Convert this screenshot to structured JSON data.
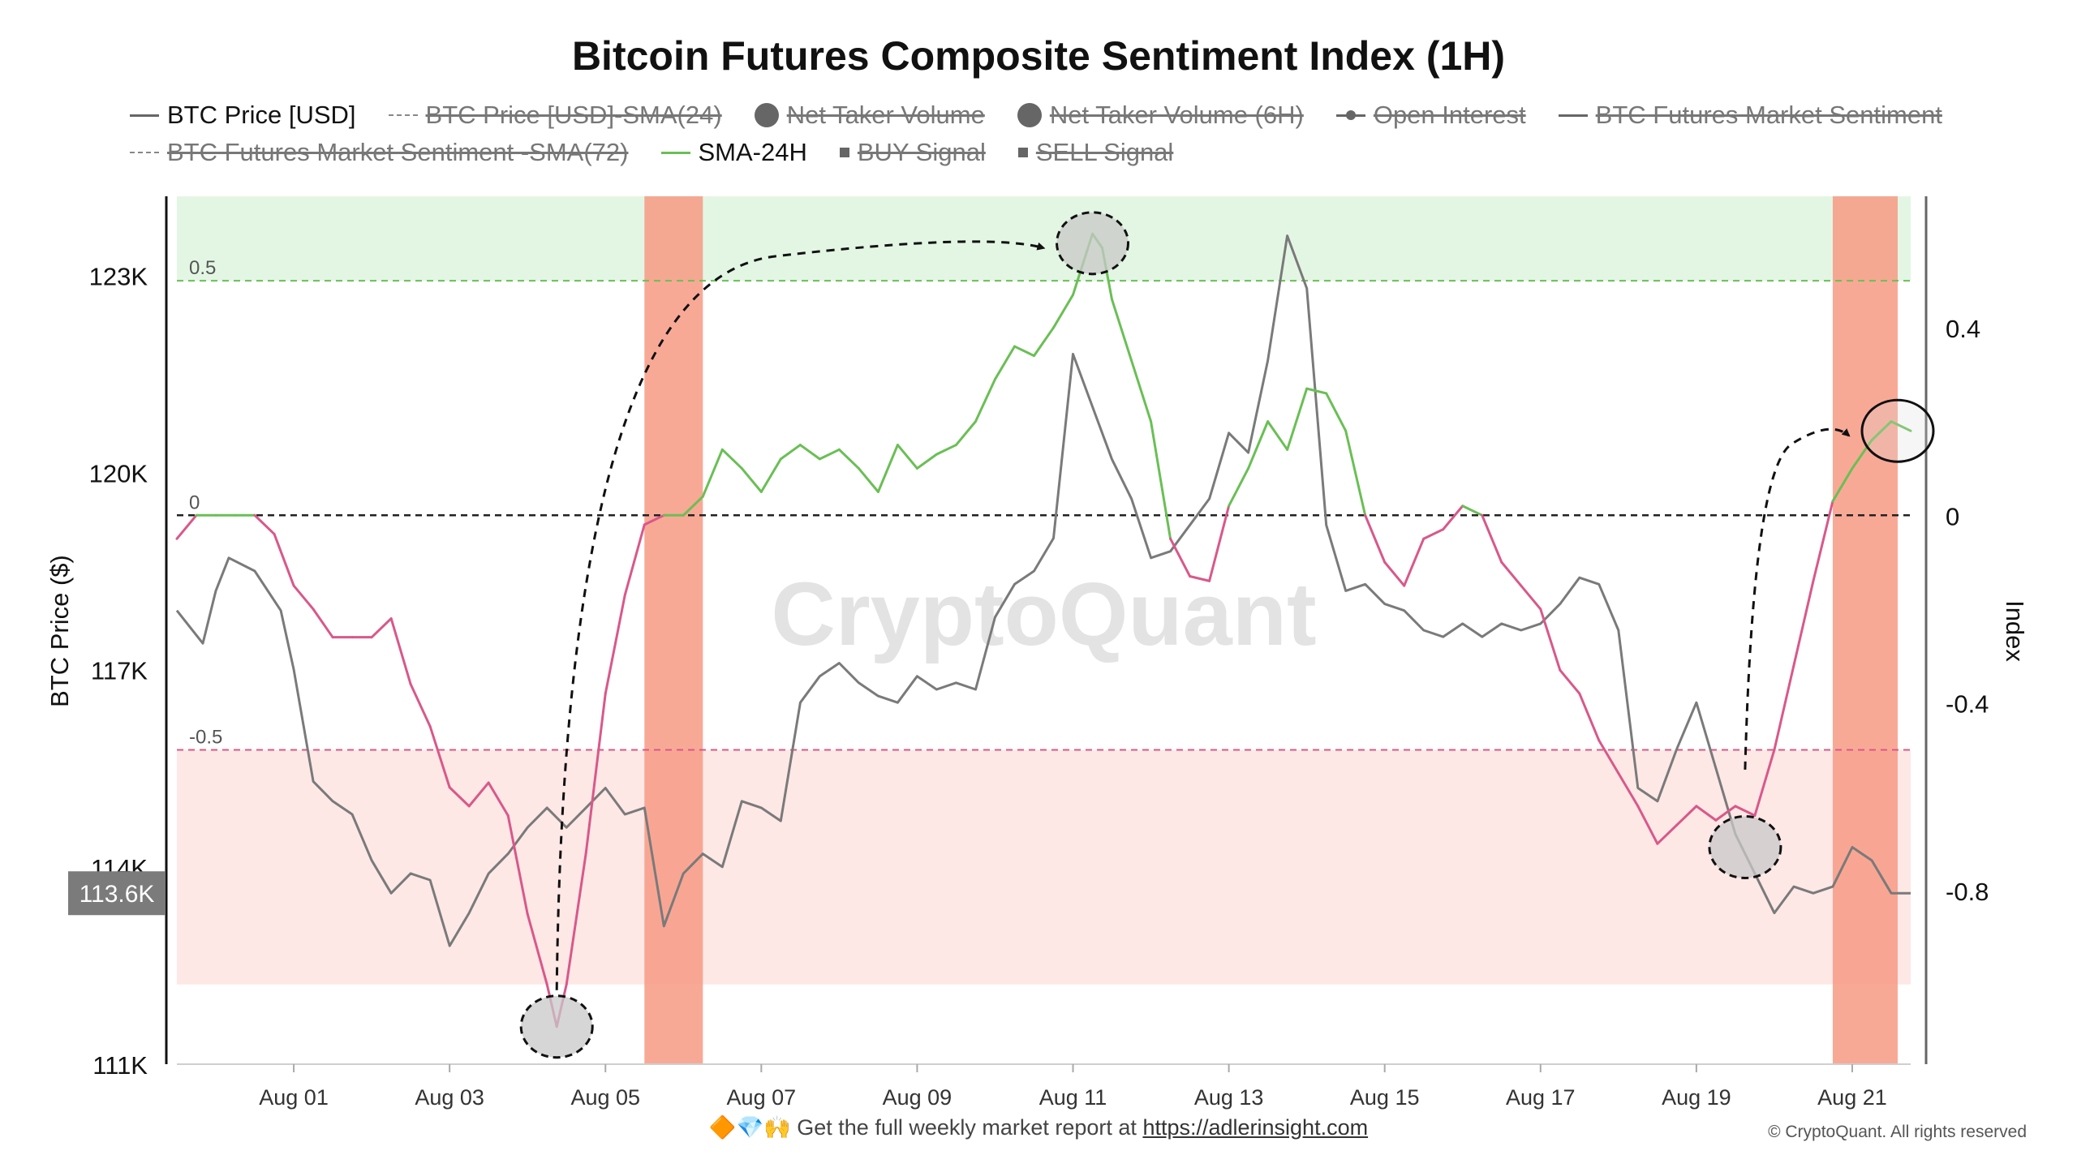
{
  "title": "Bitcoin Futures Composite Sentiment Index (1H)",
  "legend": [
    {
      "label": "BTC Price [USD]",
      "swatch": "line",
      "enabled": true
    },
    {
      "label": "BTC Price [USD]-SMA(24)",
      "swatch": "dash",
      "enabled": false
    },
    {
      "label": "Net Taker Volume",
      "swatch": "dot",
      "enabled": false
    },
    {
      "label": "Net Taker Volume (6H)",
      "swatch": "dot",
      "enabled": false
    },
    {
      "label": "Open Interest",
      "swatch": "linedot",
      "enabled": false
    },
    {
      "label": "BTC Futures Market Sentiment",
      "swatch": "line",
      "enabled": false
    },
    {
      "label": "BTC Futures Market Sentiment -SMA(72)",
      "swatch": "dash",
      "enabled": false
    },
    {
      "label": "SMA-24H",
      "swatch": "green",
      "enabled": true
    },
    {
      "label": "BUY Signal",
      "swatch": "square",
      "enabled": false
    },
    {
      "label": "SELL Signal",
      "swatch": "square",
      "enabled": false
    }
  ],
  "watermark": "CryptoQuant",
  "footer": {
    "emoji": "🔶💎🙌",
    "text": "Get the full weekly market report at ",
    "link": "https://adlerinsight.com"
  },
  "copyright": "© CryptoQuant. All rights reserved",
  "colors": {
    "price": "#7a7a7a",
    "sma_high": "#6abf55",
    "sma_low": "#d9588a",
    "bull_zone": "#e3f6e4",
    "bear_zone": "#fde8e6",
    "signal_band": "#f79a84"
  },
  "chart_data": {
    "type": "line",
    "x_ticks": [
      "Aug 01",
      "Aug 03",
      "Aug 05",
      "Aug 07",
      "Aug 09",
      "Aug 11",
      "Aug 13",
      "Aug 15",
      "Aug 17",
      "Aug 19",
      "Aug 21"
    ],
    "x_range": [
      "2025-07-30 12:00",
      "2025-08-21 18:00"
    ],
    "left_axis": {
      "label": "BTC Price ($)",
      "ticks": [
        "111K",
        "114K",
        "117K",
        "120K",
        "123K"
      ],
      "ylim": [
        111000,
        124200
      ],
      "current_value_label": "113.6K"
    },
    "right_axis": {
      "label": "Index",
      "ticks": [
        "0.4",
        "0",
        "-0.4",
        "-0.8"
      ],
      "ylim": [
        -1.17,
        0.68
      ]
    },
    "thresholds": [
      {
        "value": 0.5,
        "label": "0.5"
      },
      {
        "value": 0,
        "label": "0"
      },
      {
        "value": -0.5,
        "label": "-0.5"
      }
    ],
    "zones": [
      {
        "from": 0.5,
        "to": 0.68,
        "kind": "bullish"
      },
      {
        "from": -1.0,
        "to": -0.5,
        "kind": "bearish"
      }
    ],
    "signal_bands": [
      {
        "start": "2025-08-05 12:00",
        "end": "2025-08-06 06:00"
      },
      {
        "start": "2025-08-20 18:00",
        "end": "2025-08-21 14:00"
      }
    ],
    "series": [
      {
        "name": "BTC Price [USD]",
        "axis": "left",
        "points": [
          [
            "2025-07-30 12:00",
            117900
          ],
          [
            "2025-07-30 20:00",
            117400
          ],
          [
            "2025-07-31 00:00",
            118200
          ],
          [
            "2025-07-31 04:00",
            118700
          ],
          [
            "2025-07-31 12:00",
            118500
          ],
          [
            "2025-07-31 20:00",
            117900
          ],
          [
            "2025-08-01 00:00",
            117000
          ],
          [
            "2025-08-01 06:00",
            115300
          ],
          [
            "2025-08-01 12:00",
            115000
          ],
          [
            "2025-08-01 18:00",
            114800
          ],
          [
            "2025-08-02 00:00",
            114100
          ],
          [
            "2025-08-02 06:00",
            113600
          ],
          [
            "2025-08-02 12:00",
            113900
          ],
          [
            "2025-08-02 18:00",
            113800
          ],
          [
            "2025-08-03 00:00",
            112800
          ],
          [
            "2025-08-03 06:00",
            113300
          ],
          [
            "2025-08-03 12:00",
            113900
          ],
          [
            "2025-08-03 18:00",
            114200
          ],
          [
            "2025-08-04 00:00",
            114600
          ],
          [
            "2025-08-04 06:00",
            114900
          ],
          [
            "2025-08-04 12:00",
            114600
          ],
          [
            "2025-08-04 18:00",
            114900
          ],
          [
            "2025-08-05 00:00",
            115200
          ],
          [
            "2025-08-05 06:00",
            114800
          ],
          [
            "2025-08-05 12:00",
            114900
          ],
          [
            "2025-08-05 18:00",
            113100
          ],
          [
            "2025-08-06 00:00",
            113900
          ],
          [
            "2025-08-06 06:00",
            114200
          ],
          [
            "2025-08-06 12:00",
            114000
          ],
          [
            "2025-08-06 18:00",
            115000
          ],
          [
            "2025-08-07 00:00",
            114900
          ],
          [
            "2025-08-07 06:00",
            114700
          ],
          [
            "2025-08-07 12:00",
            116500
          ],
          [
            "2025-08-07 18:00",
            116900
          ],
          [
            "2025-08-08 00:00",
            117100
          ],
          [
            "2025-08-08 06:00",
            116800
          ],
          [
            "2025-08-08 12:00",
            116600
          ],
          [
            "2025-08-08 18:00",
            116500
          ],
          [
            "2025-08-09 00:00",
            116900
          ],
          [
            "2025-08-09 06:00",
            116700
          ],
          [
            "2025-08-09 12:00",
            116800
          ],
          [
            "2025-08-09 18:00",
            116700
          ],
          [
            "2025-08-10 00:00",
            117800
          ],
          [
            "2025-08-10 06:00",
            118300
          ],
          [
            "2025-08-10 12:00",
            118500
          ],
          [
            "2025-08-10 18:00",
            119000
          ],
          [
            "2025-08-11 00:00",
            121800
          ],
          [
            "2025-08-11 06:00",
            121000
          ],
          [
            "2025-08-11 12:00",
            120200
          ],
          [
            "2025-08-11 18:00",
            119600
          ],
          [
            "2025-08-12 00:00",
            118700
          ],
          [
            "2025-08-12 06:00",
            118800
          ],
          [
            "2025-08-12 12:00",
            119200
          ],
          [
            "2025-08-12 18:00",
            119600
          ],
          [
            "2025-08-13 00:00",
            120600
          ],
          [
            "2025-08-13 06:00",
            120300
          ],
          [
            "2025-08-13 12:00",
            121700
          ],
          [
            "2025-08-13 18:00",
            123600
          ],
          [
            "2025-08-14 00:00",
            122800
          ],
          [
            "2025-08-14 06:00",
            119200
          ],
          [
            "2025-08-14 12:00",
            118200
          ],
          [
            "2025-08-14 18:00",
            118300
          ],
          [
            "2025-08-15 00:00",
            118000
          ],
          [
            "2025-08-15 06:00",
            117900
          ],
          [
            "2025-08-15 12:00",
            117600
          ],
          [
            "2025-08-15 18:00",
            117500
          ],
          [
            "2025-08-16 00:00",
            117700
          ],
          [
            "2025-08-16 06:00",
            117500
          ],
          [
            "2025-08-16 12:00",
            117700
          ],
          [
            "2025-08-16 18:00",
            117600
          ],
          [
            "2025-08-17 00:00",
            117700
          ],
          [
            "2025-08-17 06:00",
            118000
          ],
          [
            "2025-08-17 12:00",
            118400
          ],
          [
            "2025-08-17 18:00",
            118300
          ],
          [
            "2025-08-18 00:00",
            117600
          ],
          [
            "2025-08-18 06:00",
            115200
          ],
          [
            "2025-08-18 12:00",
            115000
          ],
          [
            "2025-08-18 18:00",
            115800
          ],
          [
            "2025-08-19 00:00",
            116500
          ],
          [
            "2025-08-19 06:00",
            115500
          ],
          [
            "2025-08-19 12:00",
            114500
          ],
          [
            "2025-08-19 18:00",
            113900
          ],
          [
            "2025-08-20 00:00",
            113300
          ],
          [
            "2025-08-20 06:00",
            113700
          ],
          [
            "2025-08-20 12:00",
            113600
          ],
          [
            "2025-08-20 18:00",
            113700
          ],
          [
            "2025-08-21 00:00",
            114300
          ],
          [
            "2025-08-21 06:00",
            114100
          ],
          [
            "2025-08-21 12:00",
            113600
          ],
          [
            "2025-08-21 18:00",
            113600
          ]
        ]
      },
      {
        "name": "SMA-24H",
        "axis": "right",
        "points": [
          [
            "2025-07-30 12:00",
            -0.05
          ],
          [
            "2025-07-30 18:00",
            0.0
          ],
          [
            "2025-07-31 00:00",
            0.0
          ],
          [
            "2025-07-31 06:00",
            0.0
          ],
          [
            "2025-07-31 12:00",
            0.0
          ],
          [
            "2025-07-31 18:00",
            -0.04
          ],
          [
            "2025-08-01 00:00",
            -0.15
          ],
          [
            "2025-08-01 06:00",
            -0.2
          ],
          [
            "2025-08-01 12:00",
            -0.26
          ],
          [
            "2025-08-01 18:00",
            -0.26
          ],
          [
            "2025-08-02 00:00",
            -0.26
          ],
          [
            "2025-08-02 06:00",
            -0.22
          ],
          [
            "2025-08-02 12:00",
            -0.36
          ],
          [
            "2025-08-02 18:00",
            -0.45
          ],
          [
            "2025-08-03 00:00",
            -0.58
          ],
          [
            "2025-08-03 06:00",
            -0.62
          ],
          [
            "2025-08-03 12:00",
            -0.57
          ],
          [
            "2025-08-03 18:00",
            -0.64
          ],
          [
            "2025-08-04 00:00",
            -0.85
          ],
          [
            "2025-08-04 06:00",
            -1.0
          ],
          [
            "2025-08-04 09:00",
            -1.09
          ],
          [
            "2025-08-04 12:00",
            -1.0
          ],
          [
            "2025-08-04 18:00",
            -0.72
          ],
          [
            "2025-08-05 00:00",
            -0.38
          ],
          [
            "2025-08-05 06:00",
            -0.17
          ],
          [
            "2025-08-05 12:00",
            -0.02
          ],
          [
            "2025-08-05 18:00",
            0.0
          ],
          [
            "2025-08-06 00:00",
            0.0
          ],
          [
            "2025-08-06 06:00",
            0.04
          ],
          [
            "2025-08-06 12:00",
            0.14
          ],
          [
            "2025-08-06 18:00",
            0.1
          ],
          [
            "2025-08-07 00:00",
            0.05
          ],
          [
            "2025-08-07 06:00",
            0.12
          ],
          [
            "2025-08-07 12:00",
            0.15
          ],
          [
            "2025-08-07 18:00",
            0.12
          ],
          [
            "2025-08-08 00:00",
            0.14
          ],
          [
            "2025-08-08 06:00",
            0.1
          ],
          [
            "2025-08-08 12:00",
            0.05
          ],
          [
            "2025-08-08 18:00",
            0.15
          ],
          [
            "2025-08-09 00:00",
            0.1
          ],
          [
            "2025-08-09 06:00",
            0.13
          ],
          [
            "2025-08-09 12:00",
            0.15
          ],
          [
            "2025-08-09 18:00",
            0.2
          ],
          [
            "2025-08-10 00:00",
            0.29
          ],
          [
            "2025-08-10 06:00",
            0.36
          ],
          [
            "2025-08-10 12:00",
            0.34
          ],
          [
            "2025-08-10 18:00",
            0.4
          ],
          [
            "2025-08-11 00:00",
            0.47
          ],
          [
            "2025-08-11 06:00",
            0.6
          ],
          [
            "2025-08-11 09:00",
            0.57
          ],
          [
            "2025-08-11 12:00",
            0.46
          ],
          [
            "2025-08-11 18:00",
            0.33
          ],
          [
            "2025-08-12 00:00",
            0.2
          ],
          [
            "2025-08-12 06:00",
            -0.05
          ],
          [
            "2025-08-12 12:00",
            -0.13
          ],
          [
            "2025-08-12 18:00",
            -0.14
          ],
          [
            "2025-08-13 00:00",
            0.02
          ],
          [
            "2025-08-13 06:00",
            0.1
          ],
          [
            "2025-08-13 12:00",
            0.2
          ],
          [
            "2025-08-13 18:00",
            0.14
          ],
          [
            "2025-08-14 00:00",
            0.27
          ],
          [
            "2025-08-14 06:00",
            0.26
          ],
          [
            "2025-08-14 12:00",
            0.18
          ],
          [
            "2025-08-14 18:00",
            0.0
          ],
          [
            "2025-08-15 00:00",
            -0.1
          ],
          [
            "2025-08-15 06:00",
            -0.15
          ],
          [
            "2025-08-15 12:00",
            -0.05
          ],
          [
            "2025-08-15 18:00",
            -0.03
          ],
          [
            "2025-08-16 00:00",
            0.02
          ],
          [
            "2025-08-16 06:00",
            0.0
          ],
          [
            "2025-08-16 12:00",
            -0.1
          ],
          [
            "2025-08-16 18:00",
            -0.15
          ],
          [
            "2025-08-17 00:00",
            -0.2
          ],
          [
            "2025-08-17 06:00",
            -0.33
          ],
          [
            "2025-08-17 12:00",
            -0.38
          ],
          [
            "2025-08-17 18:00",
            -0.48
          ],
          [
            "2025-08-18 00:00",
            -0.55
          ],
          [
            "2025-08-18 06:00",
            -0.62
          ],
          [
            "2025-08-18 12:00",
            -0.7
          ],
          [
            "2025-08-18 18:00",
            -0.66
          ],
          [
            "2025-08-19 00:00",
            -0.62
          ],
          [
            "2025-08-19 06:00",
            -0.65
          ],
          [
            "2025-08-19 12:00",
            -0.62
          ],
          [
            "2025-08-19 18:00",
            -0.64
          ],
          [
            "2025-08-20 00:00",
            -0.5
          ],
          [
            "2025-08-20 06:00",
            -0.32
          ],
          [
            "2025-08-20 12:00",
            -0.14
          ],
          [
            "2025-08-20 18:00",
            0.03
          ],
          [
            "2025-08-21 00:00",
            0.1
          ],
          [
            "2025-08-21 06:00",
            0.16
          ],
          [
            "2025-08-21 12:00",
            0.2
          ],
          [
            "2025-08-21 18:00",
            0.18
          ]
        ]
      }
    ],
    "annotations": [
      {
        "kind": "circle",
        "series": "SMA-24H",
        "at": "2025-08-04 09:00",
        "value": -1.09
      },
      {
        "kind": "circle",
        "series": "SMA-24H",
        "at": "2025-08-11 06:00",
        "value": 0.58
      },
      {
        "kind": "circle",
        "series": "BTC Price [USD]",
        "at": "2025-08-19 15:00",
        "value": 114300
      },
      {
        "kind": "circle",
        "series": "SMA-24H",
        "at": "2025-08-21 14:00",
        "value": 0.18
      },
      {
        "kind": "arrow",
        "from_series": "SMA-24H",
        "from": [
          "2025-08-04 09:00",
          -1.09
        ],
        "to": [
          "2025-08-11 06:00",
          0.58
        ]
      },
      {
        "kind": "arrow",
        "from_series": "SMA-24H",
        "from": [
          "2025-08-19 15:00",
          -0.62
        ],
        "to": [
          "2025-08-21 14:00",
          0.18
        ]
      }
    ]
  }
}
